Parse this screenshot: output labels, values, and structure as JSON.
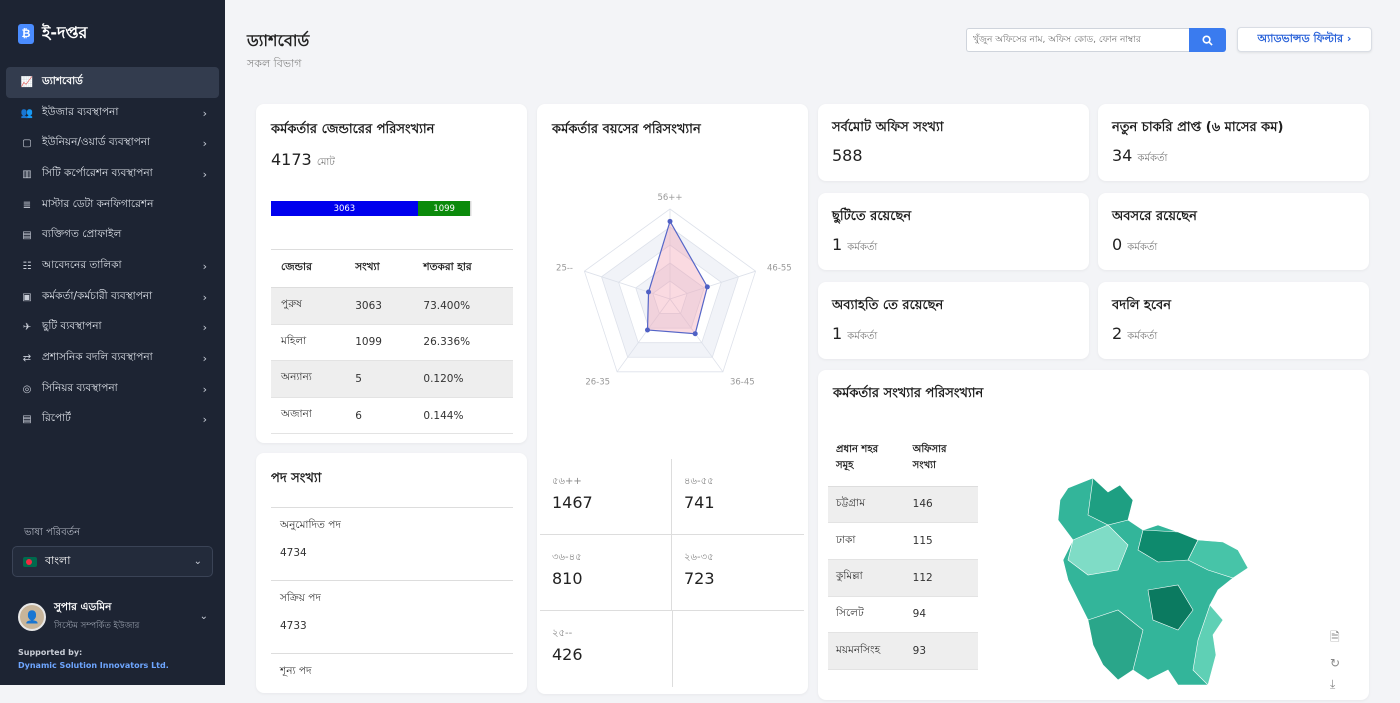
{
  "app": {
    "name": "ই-দপ্তর",
    "logo_icon": "document-logo-icon"
  },
  "sidebar": {
    "items": [
      {
        "label": "ড্যাশবোর্ড",
        "icon": "chart-icon",
        "active": true,
        "chevron": false
      },
      {
        "label": "ইউজার ব্যবস্থাপনা",
        "icon": "users-icon",
        "chevron": true
      },
      {
        "label": "ইউনিয়ন/ওয়ার্ড ব্যবস্থাপনা",
        "icon": "square-icon",
        "chevron": true
      },
      {
        "label": "সিটি কর্পোরেশন ব্যবস্থাপনা",
        "icon": "building-icon",
        "chevron": true
      },
      {
        "label": "মাস্টার ডেটা কনফিগারেশন",
        "icon": "database-icon",
        "chevron": false
      },
      {
        "label": "ব্যক্তিগত প্রোফাইল",
        "icon": "profile-icon",
        "chevron": false
      },
      {
        "label": "আবেদনের তালিকা",
        "icon": "list-icon",
        "chevron": true
      },
      {
        "label": "কর্মকর্তা/কর্মচারী ব্যবস্থাপনা",
        "icon": "briefcase-icon",
        "chevron": true
      },
      {
        "label": "ছুটি ব্যবস্থাপনা",
        "icon": "plane-icon",
        "chevron": true
      },
      {
        "label": "প্রশাসনিক বদলি ব্যবস্থাপনা",
        "icon": "transfer-icon",
        "chevron": true
      },
      {
        "label": "সিনিয়র ব্যবস্থাপনা",
        "icon": "medal-icon",
        "chevron": true
      },
      {
        "label": "রিপোর্ট",
        "icon": "report-icon",
        "chevron": true
      }
    ],
    "language_title": "ভাষা পরিবর্তন",
    "language_value": "বাংলা",
    "user_name": "সুপার এডমিন",
    "user_role": "সিস্টেম সম্পর্কিত ইউজার",
    "supported_by": "Supported by:",
    "supported_org": "Dynamic Solution Innovators Ltd."
  },
  "header": {
    "title": "ড্যাশবোর্ড",
    "subtitle": "সকল বিভাগ",
    "search_placeholder": "খুঁজুন অফিসের নাম, অফিস কোড, ফোন নাম্বার",
    "advanced_filter": "অ্যাডভান্সড ফিল্টার ›"
  },
  "gender": {
    "title": "কর্মকর্তার জেন্ডারের পরিসংখ্যান",
    "total": "4173",
    "total_unit": "মোট",
    "bar": [
      {
        "value": 3063,
        "color": "#0000ee"
      },
      {
        "value": 1099,
        "color": "#0b8a0b"
      },
      {
        "value": 5,
        "color": "#d8d8d8"
      },
      {
        "value": 6,
        "color": "#eeeeee"
      }
    ],
    "headers": [
      "জেন্ডার",
      "সংখ্যা",
      "শতকরা হার"
    ],
    "rows": [
      [
        "পুরুষ",
        "3063",
        "73.400%"
      ],
      [
        "মহিলা",
        "1099",
        "26.336%"
      ],
      [
        "অন্যান্য",
        "5",
        "0.120%"
      ],
      [
        "অজানা",
        "6",
        "0.144%"
      ]
    ]
  },
  "posts": {
    "title": "পদ সংখ্যা",
    "rows": [
      {
        "label": "অনুমোদিত পদ",
        "value": "4734"
      },
      {
        "label": "সক্রিয় পদ",
        "value": "4733"
      },
      {
        "label": "শূন্য পদ",
        "value": ""
      }
    ]
  },
  "age": {
    "title": "কর্মকর্তার বয়সের পরিসংখ্যান",
    "radar_labels": [
      "56++",
      "46-55",
      "36-45",
      "26-35",
      "25--"
    ],
    "radar_values": [
      1467,
      741,
      810,
      723,
      426
    ],
    "radar_max": 1700,
    "cells": [
      {
        "range": "৫৬++",
        "value": "1467"
      },
      {
        "range": "৪৬-৫৫",
        "value": "741"
      },
      {
        "range": "৩৬-৪৫",
        "value": "810"
      },
      {
        "range": "২৬-৩৫",
        "value": "723"
      },
      {
        "range": "২৫--",
        "value": "426"
      }
    ]
  },
  "stats": [
    {
      "title": "সর্বমোট অফিস সংখ্যা",
      "value": "588",
      "unit": ""
    },
    {
      "title": "নতুন চাকরি প্রাপ্ত (৬ মাসের কম)",
      "value": "34",
      "unit": "কর্মকর্তা"
    },
    {
      "title": "ছুটিতে রয়েছেন",
      "value": "1",
      "unit": "কর্মকর্তা"
    },
    {
      "title": "অবসরে রয়েছেন",
      "value": "0",
      "unit": "কর্মকর্তা"
    },
    {
      "title": "অব্যাহতি তে রয়েছেন",
      "value": "1",
      "unit": "কর্মকর্তা"
    },
    {
      "title": "বদলি হবেন",
      "value": "2",
      "unit": "কর্মকর্তা"
    }
  ],
  "division": {
    "title": "কর্মকর্তার সংখ্যার পরিসংখ্যান",
    "headers": [
      "প্রধান শহর সমূহ",
      "অফিসার সংখ্যা"
    ],
    "rows": [
      [
        "চট্টগ্রাম",
        "146"
      ],
      [
        "ঢাকা",
        "115"
      ],
      [
        "কুমিল্লা",
        "112"
      ],
      [
        "সিলেট",
        "94"
      ],
      [
        "ময়মনসিংহ",
        "93"
      ]
    ],
    "tools": [
      "document-icon",
      "refresh-icon",
      "download-icon"
    ]
  }
}
